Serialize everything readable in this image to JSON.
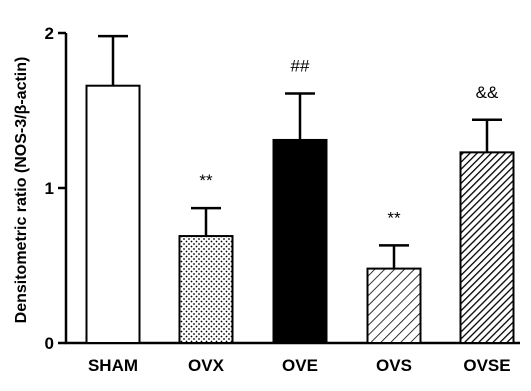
{
  "chart_data": {
    "type": "bar",
    "title": "",
    "xlabel": "",
    "ylabel": "Densitometric ratio (NOS-3/β-actin)",
    "ylim": [
      0,
      2
    ],
    "yticks": [
      0,
      1,
      2
    ],
    "grid": false,
    "categories": [
      "SHAM",
      "OVX",
      "OVE",
      "OVS",
      "OVSE"
    ],
    "values": [
      1.66,
      0.69,
      1.31,
      0.48,
      1.23
    ],
    "error_upper": [
      0.32,
      0.18,
      0.3,
      0.15,
      0.21
    ],
    "annotations": [
      "",
      "**",
      "##",
      "**",
      "&&"
    ],
    "fills": [
      "white",
      "dots",
      "black",
      "diagonal-light",
      "diagonal-dense"
    ]
  }
}
